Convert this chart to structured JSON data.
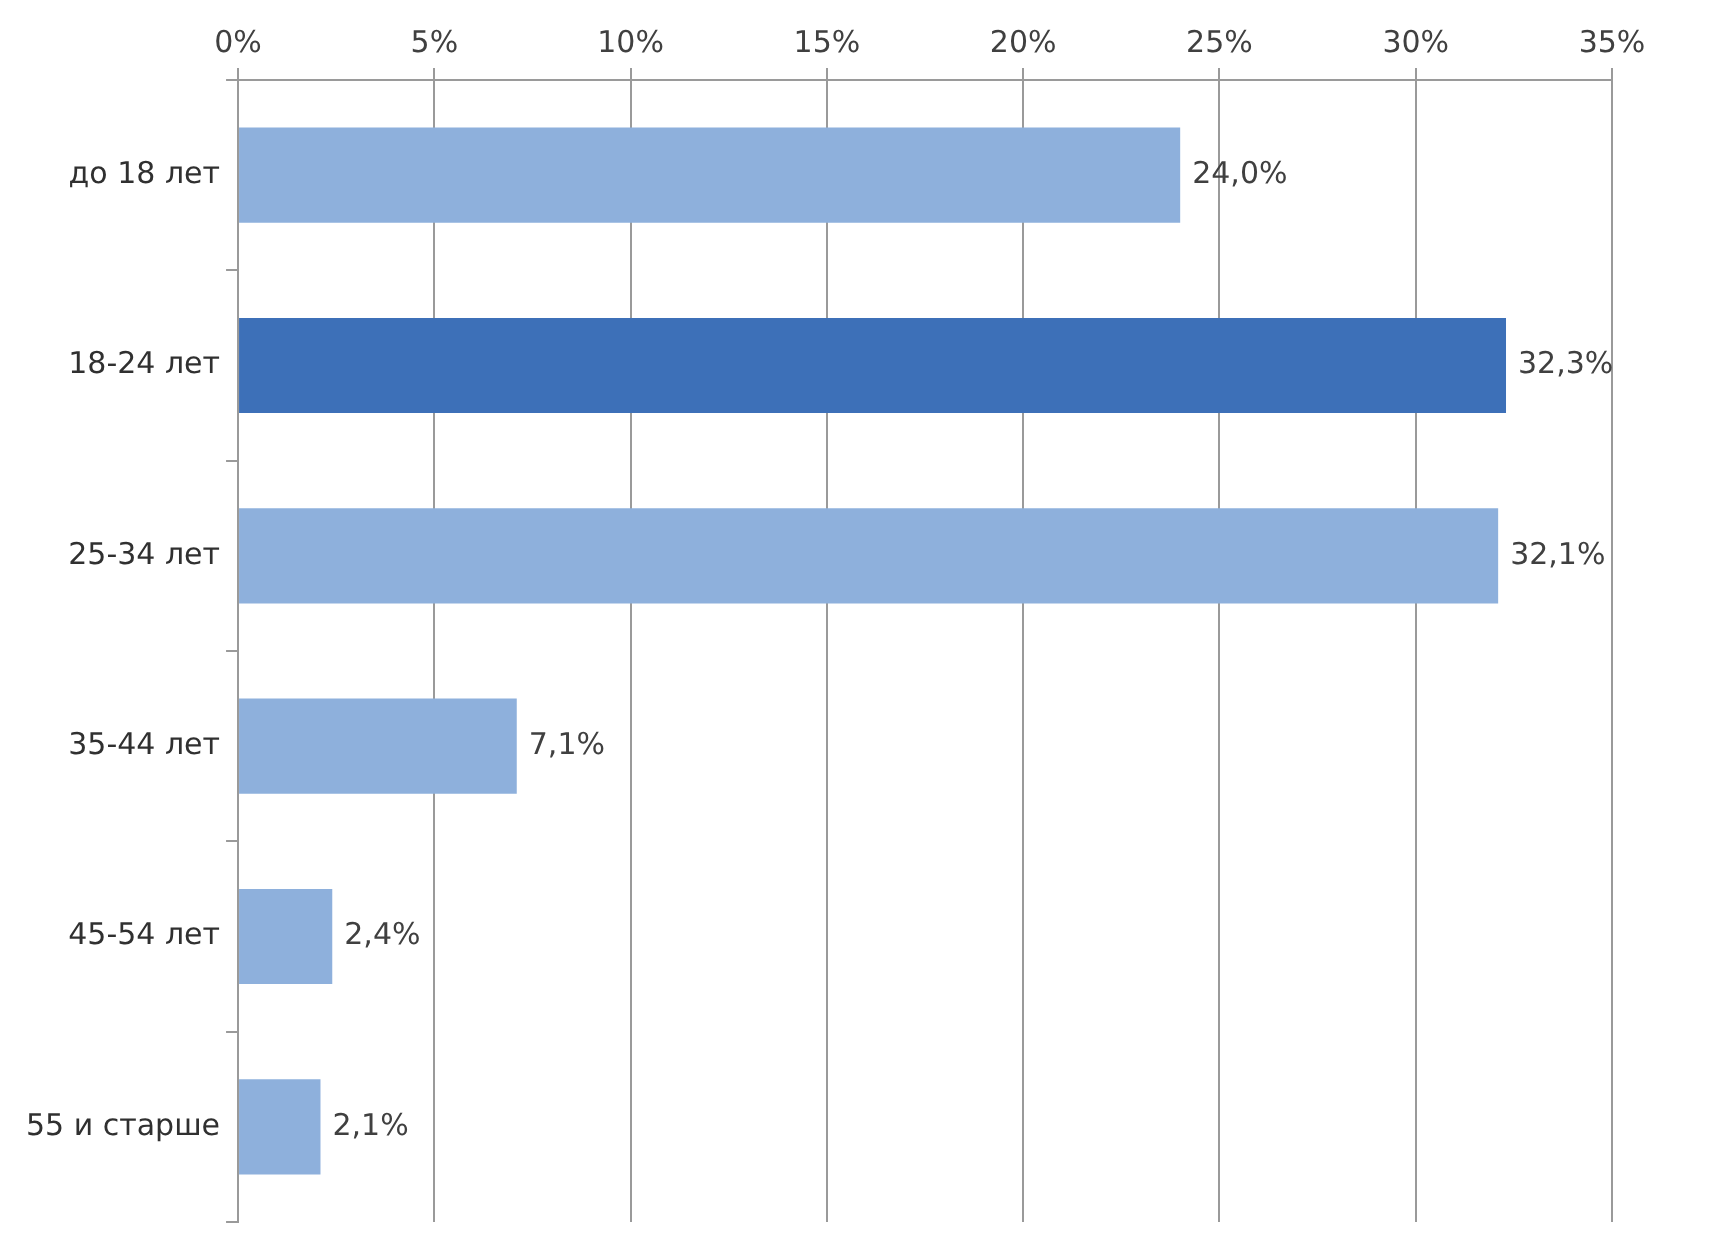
{
  "chart_data": {
    "type": "bar",
    "orientation": "horizontal",
    "categories": [
      "до 18 лет",
      "18-24 лет",
      "25-34 лет",
      "35-44 лет",
      "45-54 лет",
      "55 и старше"
    ],
    "values": [
      24.0,
      32.3,
      32.1,
      7.1,
      2.4,
      2.1
    ],
    "colors": [
      "#8eb0dc",
      "#3d70b8",
      "#8eb0dc",
      "#8eb0dc",
      "#8eb0dc",
      "#8eb0dc"
    ],
    "value_labels": [
      "24,0%",
      "32,3%",
      "32,1%",
      "7,1%",
      "2,4%",
      "2,1%"
    ],
    "xlim": [
      0,
      35
    ],
    "xticks": [
      {
        "value": 0,
        "label": "0%"
      },
      {
        "value": 5,
        "label": "5%"
      },
      {
        "value": 10,
        "label": "10%"
      },
      {
        "value": 15,
        "label": "15%"
      },
      {
        "value": 20,
        "label": "20%"
      },
      {
        "value": 25,
        "label": "25%"
      },
      {
        "value": 30,
        "label": "30%"
      },
      {
        "value": 35,
        "label": "35%"
      }
    ],
    "grid": "x",
    "legend": false
  }
}
